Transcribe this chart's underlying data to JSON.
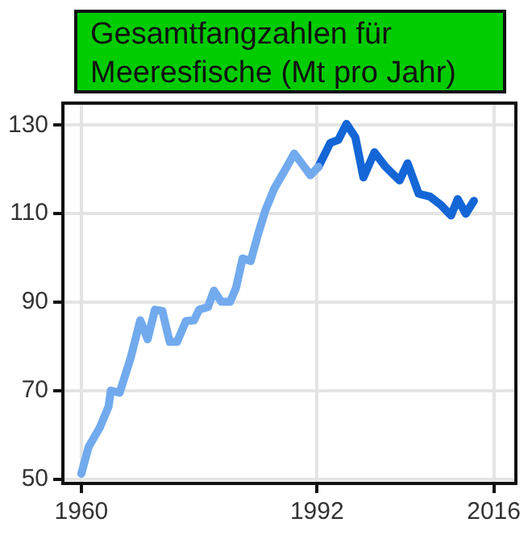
{
  "chart_data": {
    "type": "line",
    "title": "Gesamtfangzahlen für Meeresfische (Mt pro Jahr)",
    "xlim": [
      1957.5,
      2019
    ],
    "xticks": [
      1960,
      1992,
      2016
    ],
    "ylim": [
      49,
      135
    ],
    "yticks": [
      50,
      70,
      90,
      110,
      130
    ],
    "grid": true,
    "legend": false,
    "marker": "none",
    "line_style": "solid",
    "series": [
      {
        "color": "#72aaee",
        "x": [
          1960,
          1961,
          1962.5,
          1963.7,
          1964,
          1965.2,
          1966.7,
          1968,
          1969,
          1970,
          1971,
          1972,
          1973,
          1974.2,
          1975.3,
          1976,
          1977.2,
          1978,
          1979,
          1980.2,
          1981,
          1981.9,
          1983,
          1984,
          1985,
          1986.2,
          1987.7,
          1988.9,
          1990,
          1991.1,
          1992.2
        ],
        "values": [
          51.2,
          57.3,
          61.6,
          66.4,
          70,
          69.5,
          77.4,
          85.9,
          81.6,
          88.3,
          88,
          81,
          81,
          85.7,
          85.9,
          88.3,
          88.9,
          92.6,
          90.1,
          90.1,
          93.2,
          99.9,
          99.3,
          105.4,
          110.8,
          115.7,
          120,
          123.6,
          121.2,
          118.7,
          120.6
        ]
      },
      {
        "color": "#1466d6",
        "x": [
          1992.2,
          1993.8,
          1994.9,
          1996,
          1997.2,
          1998.3,
          1999.8,
          2001.3,
          2003.2,
          2004.3,
          2005.8,
          2007.3,
          2008.8,
          2010.2,
          2011.1,
          2012.2,
          2013.3
        ],
        "values": [
          120.6,
          126,
          126.7,
          130.3,
          127.3,
          118.2,
          123.9,
          120.6,
          117.5,
          121.4,
          114.5,
          113.9,
          112,
          109.6,
          113.3,
          110,
          112.9
        ]
      }
    ]
  }
}
